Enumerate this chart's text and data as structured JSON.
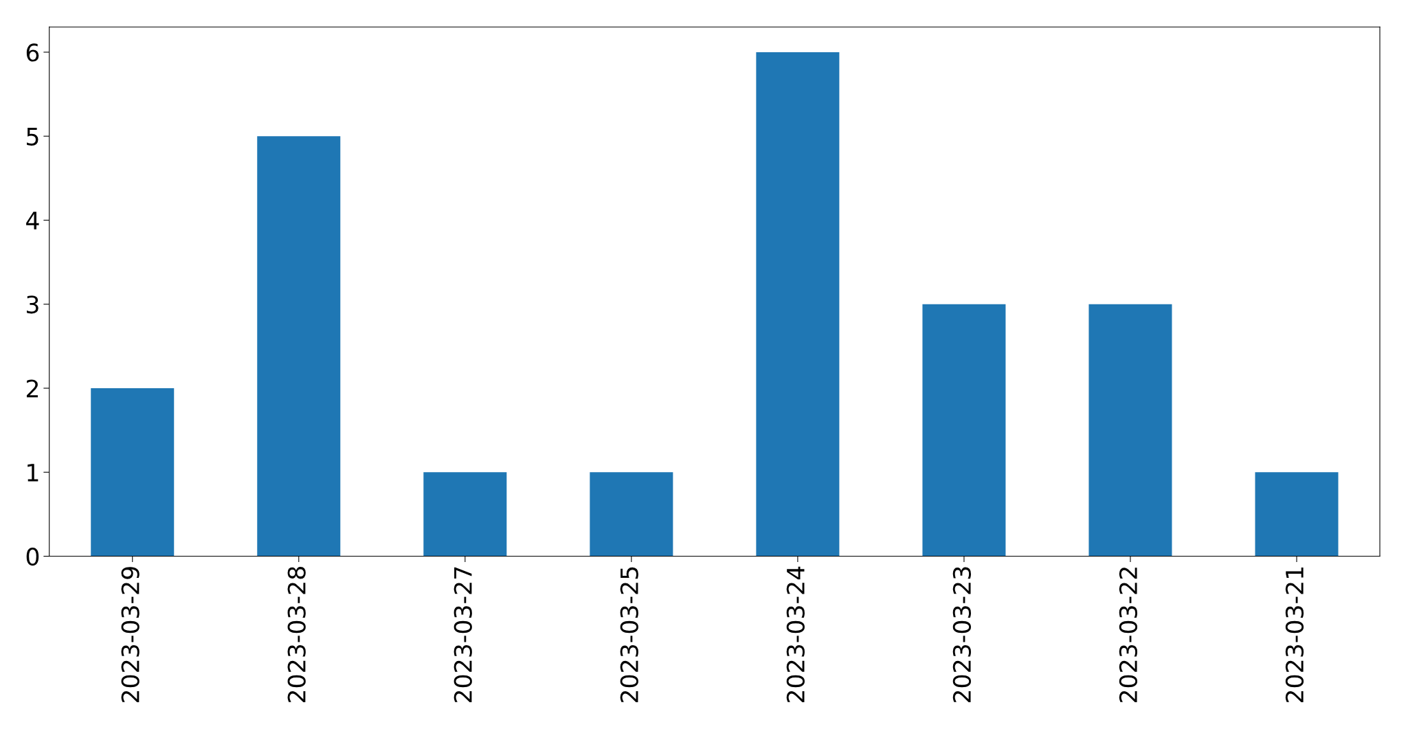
{
  "chart_data": {
    "type": "bar",
    "categories": [
      "2023-03-29",
      "2023-03-28",
      "2023-03-27",
      "2023-03-25",
      "2023-03-24",
      "2023-03-23",
      "2023-03-22",
      "2023-03-21"
    ],
    "values": [
      2,
      5,
      1,
      1,
      6,
      3,
      3,
      1
    ],
    "color": "#1f77b4",
    "ylim": [
      0,
      6.3
    ],
    "yticks": [
      0,
      1,
      2,
      3,
      4,
      5,
      6
    ],
    "grid": false
  }
}
